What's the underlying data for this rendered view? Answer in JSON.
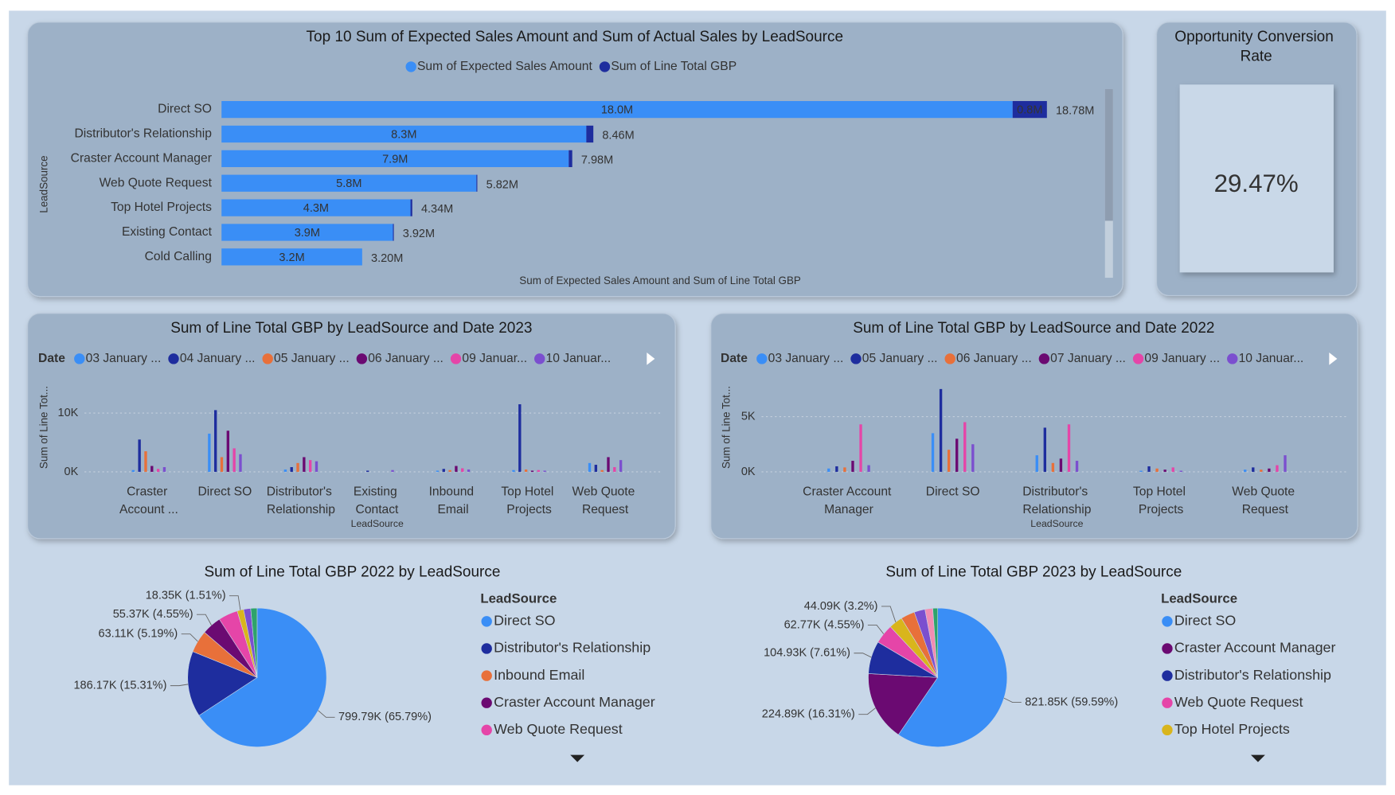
{
  "chart_data": [
    {
      "type": "hbar",
      "title": "Top 10 Sum of Expected Sales Amount and Sum of Actual Sales by LeadSource",
      "y_label": "LeadSource",
      "x_label": "Sum of Expected Sales Amount and Sum of Line Total GBP",
      "categories": [
        "Direct SO",
        "Distributor's Relationship",
        "Craster Account Manager",
        "Web Quote Request",
        "Top Hotel Projects",
        "Existing Contact",
        "Cold Calling"
      ],
      "series": [
        {
          "name": "Sum of Expected Sales Amount",
          "color": "#3a8ef6",
          "values": [
            18.0,
            8.3,
            7.9,
            5.8,
            4.3,
            3.9,
            3.2
          ],
          "value_labels": [
            "18.0M",
            "8.3M",
            "7.9M",
            "5.8M",
            "4.3M",
            "3.9M",
            "3.2M"
          ]
        },
        {
          "name": "Sum of Line Total GBP",
          "color": "#1e2d9e",
          "values": [
            0.78,
            0.16,
            0.08,
            0.02,
            0.04,
            0.02,
            0.0
          ],
          "value_labels": [
            "0.8M",
            null,
            null,
            null,
            null,
            null,
            null
          ]
        }
      ],
      "totals": [
        18.78,
        8.46,
        7.98,
        5.82,
        4.34,
        3.92,
        3.2
      ],
      "total_labels": [
        "18.78M",
        "8.46M",
        "7.98M",
        "5.82M",
        "4.34M",
        "3.92M",
        "3.20M"
      ],
      "xlim": [
        0,
        20
      ]
    },
    {
      "type": "card",
      "title": "Opportunity Conversion Rate",
      "value": 29.47,
      "value_label": "29.47%"
    },
    {
      "type": "column",
      "title": "Sum of Line Total GBP by LeadSource and Date 2023",
      "legend_title": "Date",
      "y_label": "Sum of Line Tot...",
      "x_label": "LeadSource",
      "categories": [
        "Craster Account ...",
        "Direct SO",
        "Distributor's Relationship",
        "Existing Contact",
        "Inbound Email",
        "Top Hotel Projects",
        "Web Quote Request"
      ],
      "series": [
        {
          "name": "03 January ...",
          "color": "#3a8ef6",
          "values": [
            300,
            6500,
            400,
            0,
            200,
            300,
            1500
          ]
        },
        {
          "name": "04 January ...",
          "color": "#1e2d9e",
          "values": [
            5500,
            10500,
            800,
            200,
            500,
            11500,
            1200
          ]
        },
        {
          "name": "05 January ...",
          "color": "#e8703a",
          "values": [
            3500,
            2500,
            1500,
            0,
            300,
            400,
            300
          ]
        },
        {
          "name": "06 January ...",
          "color": "#6b0a72",
          "values": [
            1000,
            7000,
            2500,
            0,
            1000,
            200,
            2500
          ]
        },
        {
          "name": "09 Januar...",
          "color": "#e545a8",
          "values": [
            500,
            4000,
            2000,
            0,
            600,
            300,
            800
          ]
        },
        {
          "name": "10 Januar...",
          "color": "#7b4fcf",
          "values": [
            800,
            3000,
            1800,
            300,
            400,
            200,
            2000
          ]
        }
      ],
      "ylim": [
        0,
        15000
      ],
      "yticks": [
        {
          "value": 0,
          "label": "0K"
        },
        {
          "value": 10000,
          "label": "10K"
        }
      ],
      "grid": true
    },
    {
      "type": "column",
      "title": "Sum of Line Total GBP by LeadSource and Date 2022",
      "legend_title": "Date",
      "y_label": "Sum of Line Tot...",
      "x_label": "LeadSource",
      "categories": [
        "Craster Account Manager",
        "Direct SO",
        "Distributor's Relationship",
        "Top Hotel Projects",
        "Web Quote Request"
      ],
      "series": [
        {
          "name": "03 January ...",
          "color": "#3a8ef6",
          "values": [
            300,
            3500,
            1500,
            100,
            200
          ]
        },
        {
          "name": "05 January ...",
          "color": "#1e2d9e",
          "values": [
            500,
            7500,
            4000,
            500,
            400
          ]
        },
        {
          "name": "06 January ...",
          "color": "#e8703a",
          "values": [
            400,
            2000,
            800,
            300,
            200
          ]
        },
        {
          "name": "07 January ...",
          "color": "#6b0a72",
          "values": [
            1000,
            3000,
            1200,
            200,
            300
          ]
        },
        {
          "name": "09 January ...",
          "color": "#e545a8",
          "values": [
            4300,
            4500,
            4300,
            400,
            600
          ]
        },
        {
          "name": "10 Januar...",
          "color": "#7b4fcf",
          "values": [
            600,
            2500,
            1000,
            100,
            1500
          ]
        }
      ],
      "ylim": [
        0,
        8000
      ],
      "yticks": [
        {
          "value": 0,
          "label": "0K"
        },
        {
          "value": 5000,
          "label": "5K"
        }
      ],
      "grid": true
    },
    {
      "type": "pie",
      "title": "Sum of Line Total GBP 2022 by LeadSource",
      "legend_title": "LeadSource",
      "categories": [
        "Direct SO",
        "Distributor's Relationship",
        "Inbound Email",
        "Craster Account Manager",
        "Web Quote Request",
        null,
        null,
        null
      ],
      "values": [
        799.79,
        186.17,
        63.11,
        55.37,
        55,
        18.35,
        20,
        18
      ],
      "value_labels": [
        "799.79K (65.79%)",
        "186.17K (15.31%)",
        "63.11K (5.19%)",
        "55.37K (4.55%)",
        null,
        "18.35K (1.51%)",
        null,
        null
      ],
      "colors": [
        "#3a8ef6",
        "#1e2d9e",
        "#e8703a",
        "#6b0a72",
        "#e545a8",
        "#d9b51c",
        "#7b4fcf",
        "#2ea36b"
      ]
    },
    {
      "type": "pie",
      "title": "Sum of Line Total GBP 2023 by LeadSource",
      "legend_title": "LeadSource",
      "categories": [
        "Direct SO",
        "Craster Account Manager",
        "Distributor's Relationship",
        "Web Quote Request",
        "Top Hotel Projects",
        null,
        null,
        null,
        null
      ],
      "values": [
        821.85,
        224.89,
        104.93,
        62.77,
        44.09,
        45,
        35,
        25,
        15.7
      ],
      "value_labels": [
        "821.85K (59.59%)",
        "224.89K (16.31%)",
        "104.93K (7.61%)",
        "62.77K (4.55%)",
        "44.09K (3.2%)",
        null,
        null,
        null,
        null
      ],
      "colors": [
        "#3a8ef6",
        "#6b0a72",
        "#1e2d9e",
        "#e545a8",
        "#d9b51c",
        "#e8703a",
        "#7b4fcf",
        "#f28db2",
        "#2ea36b"
      ]
    }
  ]
}
